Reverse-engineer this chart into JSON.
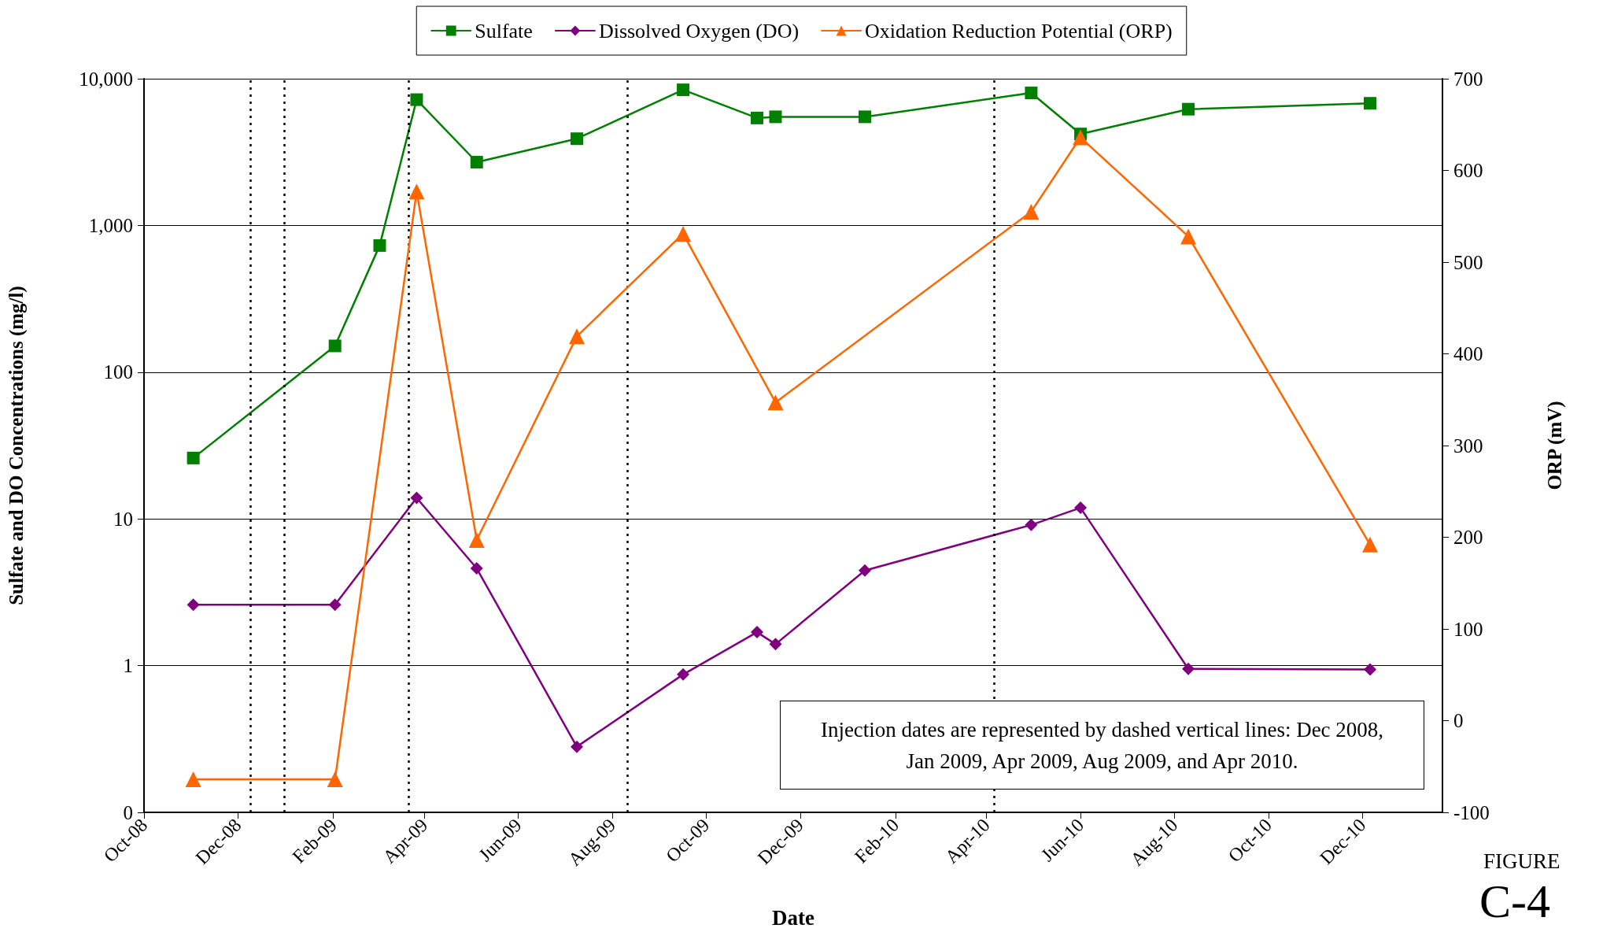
{
  "chart_data": {
    "type": "line",
    "xlabel": "Date",
    "ylabel": "Sulfate and DO Concentrations (mg/l)",
    "y2label": "ORP (mV)",
    "x": [
      "2008-11-02",
      "2009-02-02",
      "2009-03-03",
      "2009-03-27",
      "2009-05-05",
      "2009-07-09",
      "2009-09-16",
      "2009-11-03",
      "2009-11-15",
      "2010-01-12",
      "2010-04-30",
      "2010-06-01",
      "2010-08-10",
      "2010-12-06"
    ],
    "series": [
      {
        "name": "Sulfate",
        "color": "#008000",
        "marker": "square",
        "values": [
          26,
          151,
          730,
          7200,
          2700,
          3900,
          8400,
          5400,
          5500,
          5500,
          8000,
          4200,
          6200,
          6800
        ]
      },
      {
        "name": "Dissolved Oxygen (DO)",
        "color": "#800080",
        "marker": "diamond",
        "values": [
          2.6,
          2.6,
          null,
          13.9,
          4.6,
          0.28,
          0.87,
          1.69,
          1.4,
          4.45,
          9.1,
          11.9,
          0.95,
          0.94
        ]
      },
      {
        "name": "Oxidation Reduction Potential (ORP)",
        "color": "#ff6600",
        "marker": "triangle",
        "axis": "y2",
        "x": [
          "2008-11-02",
          "2009-02-02",
          "2009-03-27",
          "2009-05-05",
          "2009-07-09",
          "2009-09-16",
          "2009-11-15",
          "2010-04-30",
          "2010-06-01",
          "2010-08-10",
          "2010-12-06"
        ],
        "values": [
          -64,
          -64,
          577,
          197,
          419,
          531,
          347,
          555,
          636,
          528,
          192
        ]
      }
    ],
    "xlim": [
      "2008-10-01",
      "2011-01-22"
    ],
    "xticks": [
      {
        "value": "2008-10-01",
        "label": "Oct-08"
      },
      {
        "value": "2008-12-01",
        "label": "Dec-08"
      },
      {
        "value": "2009-02-01",
        "label": "Feb-09"
      },
      {
        "value": "2009-04-01",
        "label": "Apr-09"
      },
      {
        "value": "2009-06-01",
        "label": "Jun-09"
      },
      {
        "value": "2009-08-01",
        "label": "Aug-09"
      },
      {
        "value": "2009-10-01",
        "label": "Oct-09"
      },
      {
        "value": "2009-12-01",
        "label": "Dec-09"
      },
      {
        "value": "2010-02-01",
        "label": "Feb-10"
      },
      {
        "value": "2010-04-01",
        "label": "Apr-10"
      },
      {
        "value": "2010-06-01",
        "label": "Jun-10"
      },
      {
        "value": "2010-08-01",
        "label": "Aug-10"
      },
      {
        "value": "2010-10-01",
        "label": "Oct-10"
      },
      {
        "value": "2010-12-01",
        "label": "Dec-10"
      }
    ],
    "log": "y",
    "ylim": [
      0.1,
      10000
    ],
    "yticks": [
      {
        "value": 0.1,
        "label": "0"
      },
      1,
      10,
      100,
      {
        "value": 1000,
        "label": "1,000"
      },
      {
        "value": 10000,
        "label": "10,000"
      }
    ],
    "y2lim": [
      -100,
      700
    ],
    "y2ticks": [
      -100,
      0,
      100,
      200,
      300,
      400,
      500,
      600,
      700
    ],
    "grid": "y",
    "legend": "top",
    "line_style": "solid",
    "ref_lines": [
      {
        "axis": "x",
        "value": "2008-12-09",
        "line_style": "dotted",
        "color": "#000000"
      },
      {
        "axis": "x",
        "value": "2008-12-31",
        "line_style": "dotted",
        "color": "#000000"
      },
      {
        "axis": "x",
        "value": "2009-03-22",
        "line_style": "dotted",
        "color": "#000000"
      },
      {
        "axis": "x",
        "value": "2009-08-11",
        "line_style": "dotted",
        "color": "#000000"
      },
      {
        "axis": "x",
        "value": "2010-04-06",
        "line_style": "dotted",
        "color": "#000000"
      }
    ],
    "annotations": [
      "Injection dates are represented by dashed vertical lines: Dec 2008, Jan 2009, Apr 2009, Aug 2009, and Apr 2010.",
      "FIGURE",
      "C-4"
    ]
  }
}
